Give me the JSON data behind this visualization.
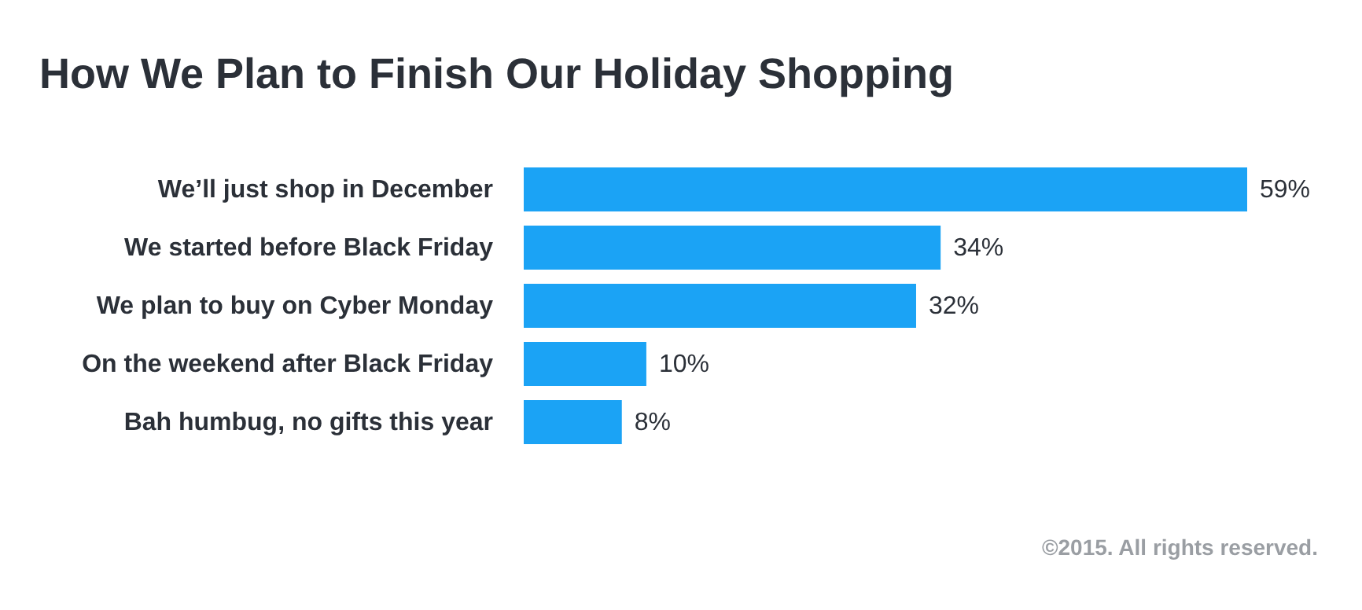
{
  "chart_data": {
    "type": "bar",
    "orientation": "horizontal",
    "title": "How We Plan to Finish Our Holiday Shopping",
    "categories": [
      "We’ll just shop in December",
      "We started before Black Friday",
      "We plan to buy on Cyber Monday",
      "On the weekend after Black Friday",
      "Bah humbug, no gifts this year"
    ],
    "values": [
      59,
      34,
      32,
      10,
      8
    ],
    "color": "#1ba3f5",
    "data_labels": true,
    "value_labels": [
      "59%",
      "34%",
      "32%",
      "10%",
      "8%"
    ],
    "annotations": [
      "©2015. All rights reserved."
    ]
  }
}
